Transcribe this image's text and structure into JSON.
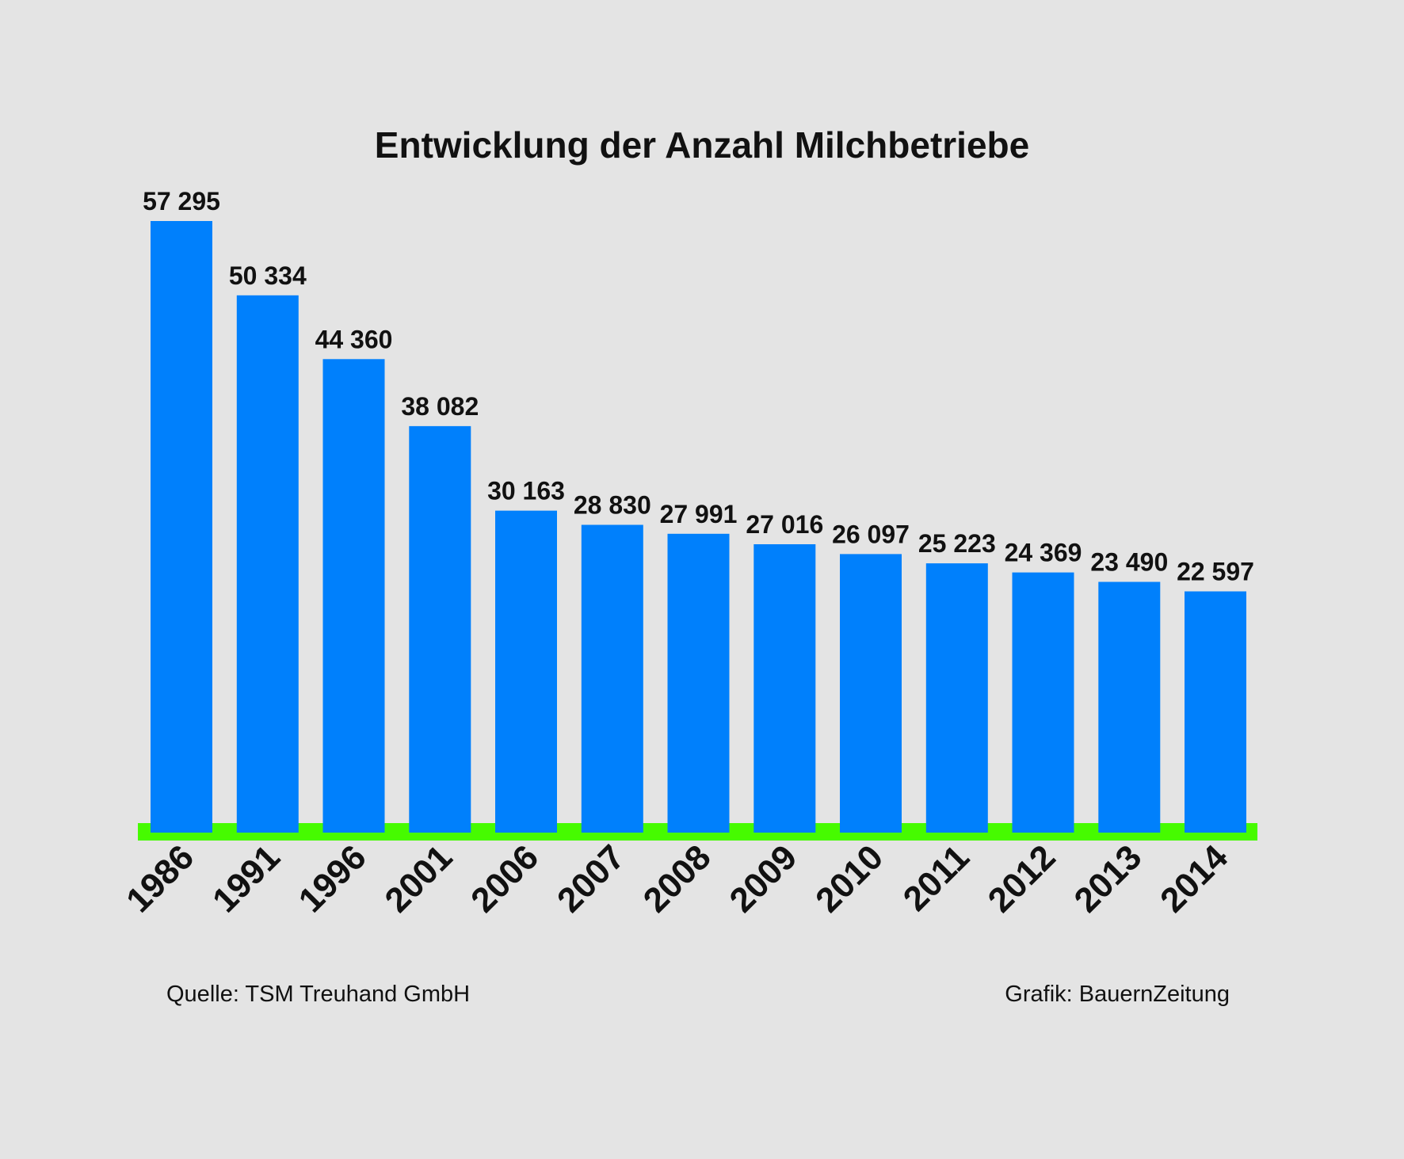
{
  "chart_data": {
    "type": "bar",
    "title": "Entwicklung der Anzahl Milchbetriebe",
    "xlabel": "",
    "ylabel": "",
    "categories": [
      "1986",
      "1991",
      "1996",
      "2001",
      "2006",
      "2007",
      "2008",
      "2009",
      "2010",
      "2011",
      "2012",
      "2013",
      "2014"
    ],
    "values": [
      57295,
      50334,
      44360,
      38082,
      30163,
      28830,
      27991,
      27016,
      26097,
      25223,
      24369,
      23490,
      22597
    ],
    "value_labels": [
      "57 295",
      "50 334",
      "44 360",
      "38 082",
      "30 163",
      "28 830",
      "27 991",
      "27 016",
      "26 097",
      "25 223",
      "24 369",
      "23 490",
      "22 597"
    ],
    "ylim": [
      0,
      57295
    ],
    "grid": false,
    "legend": "none",
    "colors": {
      "bar": "#0080fc",
      "baseline": "#46fb00",
      "background": "#e4e4e4",
      "text": "#111111"
    }
  },
  "footer": {
    "source": "Quelle: TSM Treuhand GmbH",
    "credit": "Grafik: BauernZeitung"
  }
}
